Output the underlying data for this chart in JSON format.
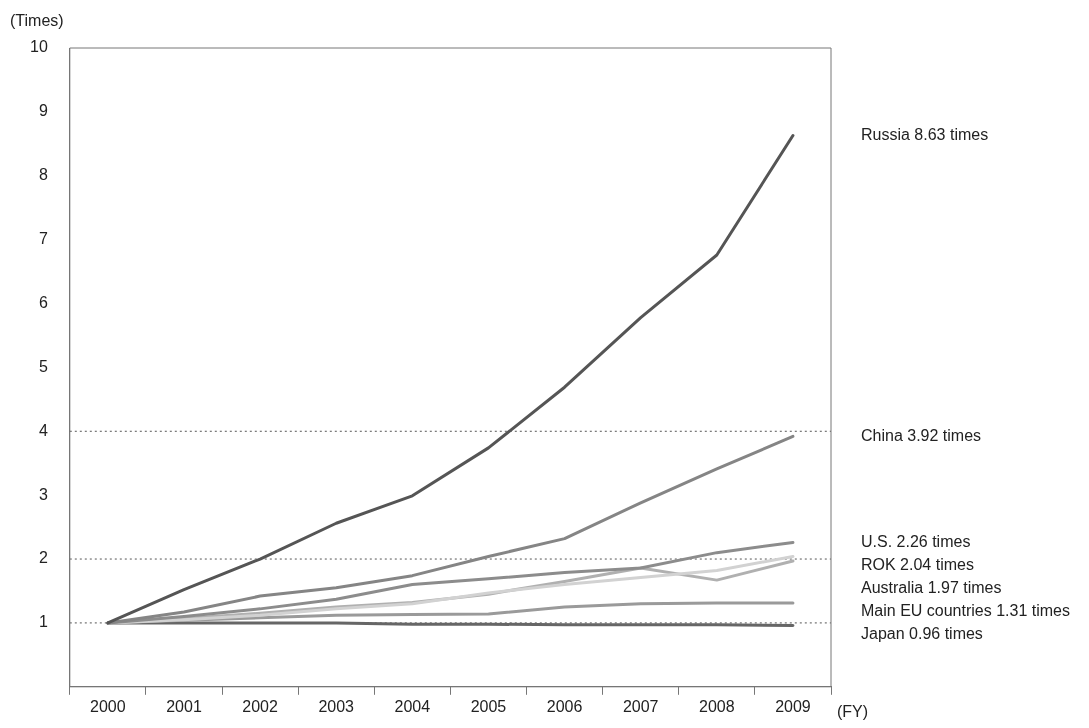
{
  "chart_data": {
    "type": "line",
    "ylabel": "(Times)",
    "xlabel": "(FY)",
    "categories": [
      "2000",
      "2001",
      "2002",
      "2003",
      "2004",
      "2005",
      "2006",
      "2007",
      "2008",
      "2009"
    ],
    "ylim": [
      0,
      10
    ],
    "yticks": [
      1,
      2,
      3,
      4,
      5,
      6,
      7,
      8,
      9,
      10
    ],
    "grid": false,
    "legend": false,
    "marker": "none",
    "line_style": "solid",
    "ref_lines": [
      {
        "axis": "y",
        "value": 1,
        "color": "#555555",
        "line_style": "dotted"
      },
      {
        "axis": "y",
        "value": 2,
        "color": "#555555",
        "line_style": "dotted"
      },
      {
        "axis": "y",
        "value": 4,
        "color": "#555555",
        "line_style": "dotted"
      }
    ],
    "series": [
      {
        "name": "Russia 8.63 times",
        "color": "#555555",
        "values": [
          1,
          1.52,
          2.0,
          2.56,
          2.99,
          3.74,
          4.69,
          5.78,
          6.76,
          8.63
        ]
      },
      {
        "name": "China 3.92 times",
        "color": "#858585",
        "values": [
          1,
          1.17,
          1.42,
          1.55,
          1.74,
          2.04,
          2.32,
          2.88,
          3.41,
          3.92
        ]
      },
      {
        "name": "U.S. 2.26 times",
        "color": "#8c8c8c",
        "values": [
          1,
          1.1,
          1.22,
          1.37,
          1.6,
          1.69,
          1.79,
          1.86,
          2.1,
          2.26
        ]
      },
      {
        "name": "ROK 2.04 times",
        "color": "#d2d2d2",
        "values": [
          1,
          1.05,
          1.12,
          1.22,
          1.3,
          1.47,
          1.6,
          1.71,
          1.82,
          2.04
        ]
      },
      {
        "name": "Australia 1.97 times",
        "color": "#b0b0b0",
        "values": [
          1,
          1.07,
          1.15,
          1.25,
          1.32,
          1.45,
          1.65,
          1.86,
          1.67,
          1.97
        ]
      },
      {
        "name": "Main EU countries 1.31 times",
        "color": "#9a9a9a",
        "values": [
          1,
          1.04,
          1.08,
          1.12,
          1.13,
          1.14,
          1.25,
          1.3,
          1.31,
          1.31
        ]
      },
      {
        "name": "Japan 0.96 times",
        "color": "#666666",
        "values": [
          1,
          1.0,
          1.0,
          1.0,
          0.98,
          0.98,
          0.97,
          0.97,
          0.97,
          0.96
        ]
      }
    ]
  }
}
